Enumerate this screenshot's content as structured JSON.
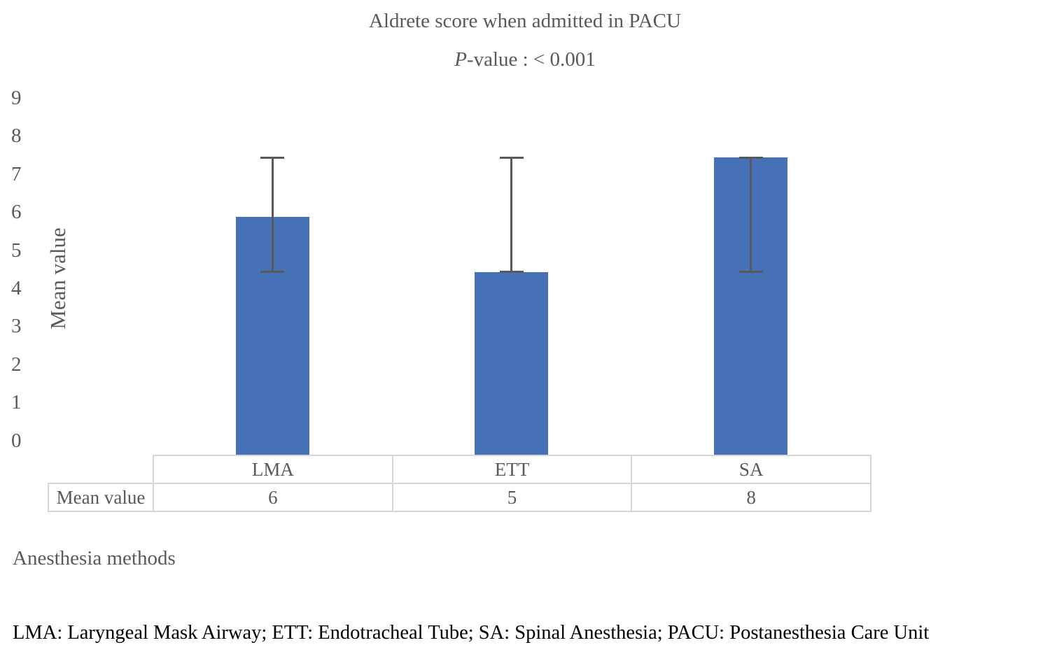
{
  "chart_data": {
    "type": "bar",
    "title": "Aldrete score when admitted in PACU",
    "subtitle": "P-value : < 0.001",
    "p_italic": "P",
    "p_rest": "-value : < 0.001",
    "ylabel": "Mean value",
    "xlabel": "Anesthesia methods",
    "ylim": [
      0,
      9
    ],
    "yticks": [
      0,
      1,
      2,
      3,
      4,
      5,
      6,
      7,
      8,
      9
    ],
    "grid": false,
    "legend": "none",
    "categories": [
      "LMA",
      "ETT",
      "SA"
    ],
    "series": [
      {
        "name": "Mean value",
        "bar_heights_visual": [
          6.0,
          4.6,
          7.5
        ],
        "table_values": [
          6,
          5,
          8
        ],
        "error_low": [
          4.6,
          4.6,
          4.6
        ],
        "error_high": [
          7.5,
          7.5,
          7.5
        ]
      }
    ],
    "table_row_label": "Mean value",
    "bar_color": "#4671b7",
    "error_bar_color": "#595959",
    "text_color": "#595959",
    "footnote_color": "#000000",
    "table_border_color": "#d6d6d6",
    "footnote": "LMA: Laryngeal Mask Airway; ETT: Endotracheal Tube; SA: Spinal Anesthesia; PACU: Postanesthesia Care Unit"
  }
}
